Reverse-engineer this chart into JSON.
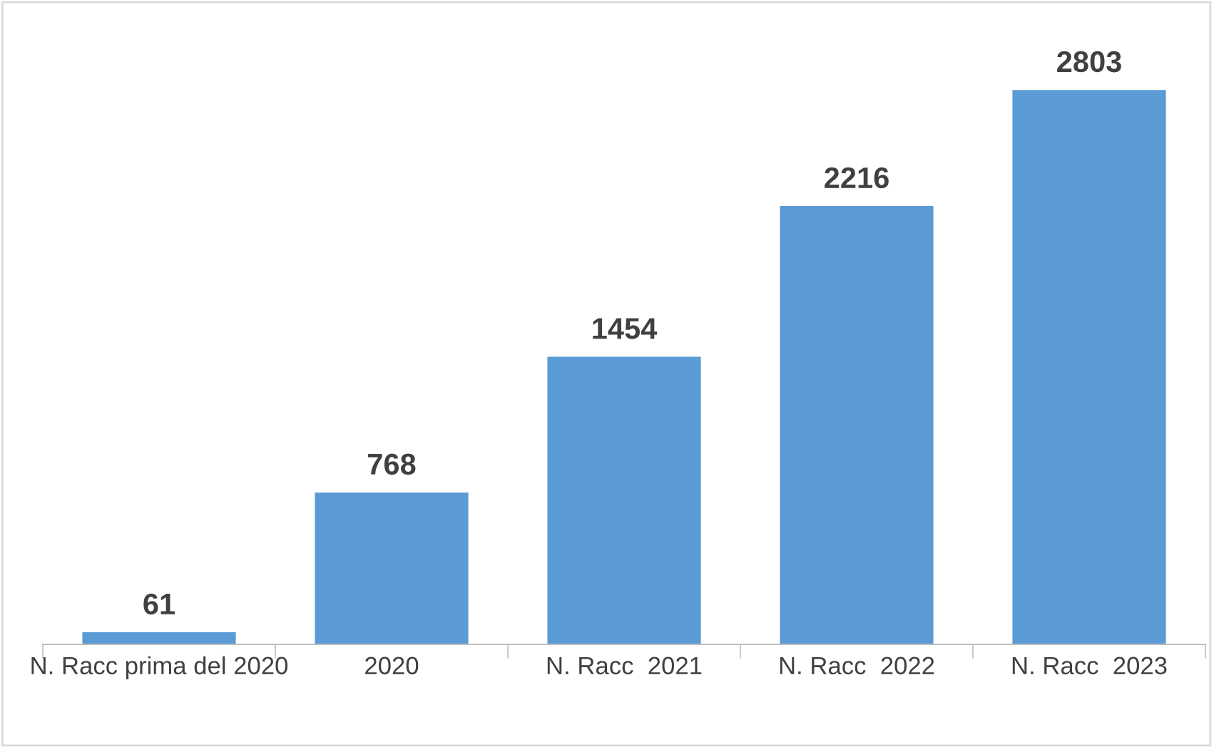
{
  "chart_data": {
    "type": "bar",
    "categories": [
      "N. Racc prima del 2020",
      "2020",
      "N. Racc  2021",
      "N. Racc  2022",
      "N. Racc  2023"
    ],
    "values": [
      61,
      768,
      1454,
      2216,
      2803
    ],
    "color": "#5b9bd5",
    "data_labels": true,
    "grid": false,
    "legend": false
  }
}
